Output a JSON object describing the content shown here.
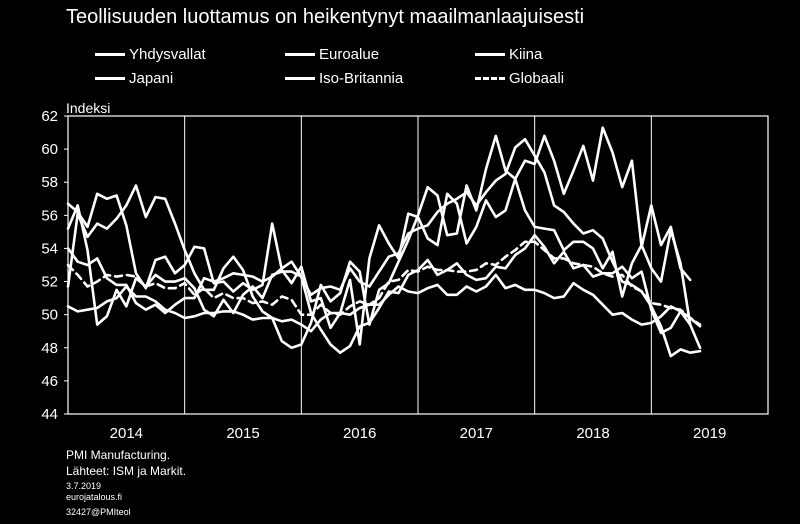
{
  "title": "Teollisuuden luottamus on heikentynyt maailmanlaajuisesti",
  "footer": {
    "line1": "PMI Manufacturing.",
    "line2": "Lähteet: ISM ja Markit.",
    "date": "3.7.2019",
    "site": "eurojatalous.fi",
    "id": "32427@PMIteol"
  },
  "colors": {
    "background": "#000000",
    "foreground": "#ffffff"
  },
  "chart_data": {
    "type": "line",
    "ylabel": "Indeksi",
    "ylim": [
      44,
      62
    ],
    "yticks": [
      44,
      46,
      48,
      50,
      52,
      54,
      56,
      58,
      60,
      62
    ],
    "xlim": [
      2014.0,
      2020.0
    ],
    "xticks": [
      "2014",
      "2015",
      "2016",
      "2017",
      "2018",
      "2019"
    ],
    "grid": "vertical year lines",
    "legend_position": "top",
    "series": [
      {
        "name": "Yhdysvallat",
        "style": "solid",
        "x": [
          2014.0,
          2014.083,
          2014.167,
          2014.25,
          2014.333,
          2014.417,
          2014.5,
          2014.583,
          2014.667,
          2014.75,
          2014.833,
          2014.917,
          2015.0,
          2015.083,
          2015.167,
          2015.25,
          2015.333,
          2015.417,
          2015.5,
          2015.583,
          2015.667,
          2015.75,
          2015.833,
          2015.917,
          2016.0,
          2016.083,
          2016.167,
          2016.25,
          2016.333,
          2016.417,
          2016.5,
          2016.583,
          2016.667,
          2016.75,
          2016.833,
          2016.917,
          2017.0,
          2017.083,
          2017.167,
          2017.25,
          2017.333,
          2017.417,
          2017.5,
          2017.583,
          2017.667,
          2017.75,
          2017.833,
          2017.917,
          2018.0,
          2018.083,
          2018.167,
          2018.25,
          2018.333,
          2018.417,
          2018.5,
          2018.583,
          2018.667,
          2018.75,
          2018.833,
          2018.917,
          2019.0,
          2019.083,
          2019.167,
          2019.25,
          2019.333
        ],
        "values": [
          51.7,
          56.1,
          54.7,
          55.5,
          55.2,
          55.8,
          56.6,
          57.8,
          55.9,
          57.1,
          57.0,
          55.5,
          53.9,
          52.5,
          51.5,
          51.5,
          52.8,
          53.5,
          52.7,
          51.1,
          50.2,
          49.8,
          48.4,
          48.0,
          48.2,
          49.5,
          51.8,
          50.8,
          51.3,
          53.2,
          52.6,
          49.4,
          51.5,
          51.9,
          53.2,
          54.5,
          56.0,
          57.7,
          57.2,
          54.8,
          54.9,
          57.8,
          56.3,
          58.8,
          60.8,
          58.7,
          58.2,
          59.3,
          59.1,
          60.8,
          59.3,
          57.3,
          58.7,
          60.2,
          58.1,
          61.3,
          59.8,
          57.7,
          59.3,
          54.1,
          56.6,
          54.2,
          55.3,
          52.8,
          52.1
        ]
      },
      {
        "name": "Euroalue",
        "style": "solid",
        "x": [
          2014.0,
          2014.083,
          2014.167,
          2014.25,
          2014.333,
          2014.417,
          2014.5,
          2014.583,
          2014.667,
          2014.75,
          2014.833,
          2014.917,
          2015.0,
          2015.083,
          2015.167,
          2015.25,
          2015.333,
          2015.417,
          2015.5,
          2015.583,
          2015.667,
          2015.75,
          2015.833,
          2015.917,
          2016.0,
          2016.083,
          2016.167,
          2016.25,
          2016.333,
          2016.417,
          2016.5,
          2016.583,
          2016.667,
          2016.75,
          2016.833,
          2016.917,
          2017.0,
          2017.083,
          2017.167,
          2017.25,
          2017.333,
          2017.417,
          2017.5,
          2017.583,
          2017.667,
          2017.75,
          2017.833,
          2017.917,
          2018.0,
          2018.083,
          2018.167,
          2018.25,
          2018.333,
          2018.417,
          2018.5,
          2018.583,
          2018.667,
          2018.75,
          2018.833,
          2018.917,
          2019.0,
          2019.083,
          2019.167,
          2019.25,
          2019.333,
          2019.417
        ],
        "values": [
          54.0,
          53.2,
          53.0,
          53.4,
          52.2,
          51.8,
          51.8,
          50.7,
          50.3,
          50.6,
          50.1,
          50.6,
          51.0,
          51.0,
          52.2,
          52.0,
          52.2,
          52.5,
          52.4,
          52.3,
          52.0,
          52.3,
          52.8,
          53.2,
          52.3,
          51.2,
          51.6,
          51.7,
          51.5,
          52.8,
          52.0,
          51.7,
          52.6,
          53.5,
          53.7,
          54.9,
          55.2,
          55.4,
          56.2,
          56.7,
          57.0,
          57.4,
          56.6,
          57.4,
          58.1,
          58.5,
          60.1,
          60.6,
          59.6,
          58.6,
          56.6,
          56.2,
          55.5,
          54.9,
          55.1,
          54.6,
          53.2,
          52.0,
          51.8,
          51.4,
          50.5,
          49.3,
          47.5,
          47.9,
          47.7,
          47.8
        ]
      },
      {
        "name": "Kiina",
        "style": "solid",
        "x": [
          2014.0,
          2014.083,
          2014.167,
          2014.25,
          2014.333,
          2014.417,
          2014.5,
          2014.583,
          2014.667,
          2014.75,
          2014.833,
          2014.917,
          2015.0,
          2015.083,
          2015.167,
          2015.25,
          2015.333,
          2015.417,
          2015.5,
          2015.583,
          2015.667,
          2015.75,
          2015.833,
          2015.917,
          2016.0,
          2016.083,
          2016.167,
          2016.25,
          2016.333,
          2016.417,
          2016.5,
          2016.583,
          2016.667,
          2016.75,
          2016.833,
          2016.917,
          2017.0,
          2017.083,
          2017.167,
          2017.25,
          2017.333,
          2017.417,
          2017.5,
          2017.583,
          2017.667,
          2017.75,
          2017.833,
          2017.917,
          2018.0,
          2018.083,
          2018.167,
          2018.25,
          2018.333,
          2018.417,
          2018.5,
          2018.583,
          2018.667,
          2018.75,
          2018.833,
          2018.917,
          2019.0,
          2019.083,
          2019.167,
          2019.25,
          2019.333
        ],
        "values": [
          50.5,
          50.2,
          50.3,
          50.4,
          50.8,
          51.0,
          51.7,
          51.1,
          51.1,
          50.8,
          50.3,
          50.1,
          49.8,
          49.9,
          50.1,
          50.1,
          50.2,
          50.2,
          50.0,
          49.7,
          49.8,
          49.8,
          49.6,
          49.7,
          49.4,
          49.0,
          49.7,
          50.1,
          50.1,
          50.0,
          50.4,
          50.6,
          50.6,
          51.2,
          51.7,
          51.4,
          51.3,
          51.6,
          51.8,
          51.2,
          51.2,
          51.7,
          51.4,
          51.7,
          52.4,
          51.6,
          51.8,
          51.5,
          51.5,
          51.3,
          51.0,
          51.1,
          51.9,
          51.5,
          51.2,
          50.6,
          50.0,
          50.1,
          49.7,
          49.4,
          49.5,
          49.9,
          50.5,
          50.2,
          49.4
        ]
      },
      {
        "name": "Japani",
        "style": "solid",
        "x": [
          2014.0,
          2014.083,
          2014.167,
          2014.25,
          2014.333,
          2014.417,
          2014.5,
          2014.583,
          2014.667,
          2014.75,
          2014.833,
          2014.917,
          2015.0,
          2015.083,
          2015.167,
          2015.25,
          2015.333,
          2015.417,
          2015.5,
          2015.583,
          2015.667,
          2015.75,
          2015.833,
          2015.917,
          2016.0,
          2016.083,
          2016.167,
          2016.25,
          2016.333,
          2016.417,
          2016.5,
          2016.583,
          2016.667,
          2016.75,
          2016.833,
          2016.917,
          2017.0,
          2017.083,
          2017.167,
          2017.25,
          2017.333,
          2017.417,
          2017.5,
          2017.583,
          2017.667,
          2017.75,
          2017.833,
          2017.917,
          2018.0,
          2018.083,
          2018.167,
          2018.25,
          2018.333,
          2018.417,
          2018.5,
          2018.583,
          2018.667,
          2018.75,
          2018.833,
          2018.917,
          2019.0,
          2019.083,
          2019.167,
          2019.25,
          2019.333,
          2019.417
        ],
        "values": [
          55.2,
          56.6,
          53.9,
          49.4,
          49.9,
          51.5,
          50.5,
          52.2,
          51.7,
          52.4,
          52.0,
          52.0,
          52.2,
          51.6,
          50.3,
          49.9,
          50.9,
          50.1,
          51.2,
          51.7,
          51.0,
          52.4,
          52.6,
          52.6,
          52.3,
          50.1,
          49.1,
          48.2,
          47.7,
          48.1,
          49.3,
          49.5,
          50.4,
          51.4,
          51.3,
          52.4,
          52.7,
          53.3,
          52.4,
          52.7,
          53.1,
          52.4,
          52.1,
          52.2,
          52.9,
          52.8,
          53.6,
          54.0,
          54.8,
          54.1,
          53.1,
          53.8,
          52.8,
          53.0,
          52.3,
          52.5,
          52.5,
          52.9,
          52.2,
          52.6,
          50.3,
          48.9,
          49.2,
          50.2,
          49.8,
          49.3
        ]
      },
      {
        "name": "Iso-Britannia",
        "style": "solid",
        "x": [
          2014.0,
          2014.083,
          2014.167,
          2014.25,
          2014.333,
          2014.417,
          2014.5,
          2014.583,
          2014.667,
          2014.75,
          2014.833,
          2014.917,
          2015.0,
          2015.083,
          2015.167,
          2015.25,
          2015.333,
          2015.417,
          2015.5,
          2015.583,
          2015.667,
          2015.75,
          2015.833,
          2015.917,
          2016.0,
          2016.083,
          2016.167,
          2016.25,
          2016.333,
          2016.417,
          2016.5,
          2016.583,
          2016.667,
          2016.75,
          2016.833,
          2016.917,
          2017.0,
          2017.083,
          2017.167,
          2017.25,
          2017.333,
          2017.417,
          2017.5,
          2017.583,
          2017.667,
          2017.75,
          2017.833,
          2017.917,
          2018.0,
          2018.083,
          2018.167,
          2018.25,
          2018.333,
          2018.417,
          2018.5,
          2018.583,
          2018.667,
          2018.75,
          2018.833,
          2018.917,
          2019.0,
          2019.083,
          2019.167,
          2019.25,
          2019.333,
          2019.417
        ],
        "values": [
          56.7,
          56.2,
          55.3,
          57.3,
          57.0,
          57.2,
          55.4,
          52.5,
          51.6,
          53.3,
          53.5,
          52.5,
          53.0,
          54.1,
          54.0,
          51.9,
          52.0,
          51.4,
          51.9,
          51.5,
          51.8,
          55.5,
          52.7,
          51.9,
          52.9,
          50.8,
          51.0,
          49.2,
          50.1,
          52.1,
          48.2,
          53.4,
          55.4,
          54.3,
          53.4,
          56.1,
          55.9,
          54.6,
          54.2,
          57.3,
          56.7,
          54.3,
          55.3,
          56.9,
          55.9,
          56.3,
          58.2,
          56.3,
          55.3,
          55.2,
          55.1,
          53.9,
          54.4,
          54.4,
          54.0,
          52.8,
          53.8,
          51.1,
          53.1,
          54.2,
          52.8,
          52.0,
          55.1,
          53.1,
          49.4,
          48.0
        ]
      },
      {
        "name": "Globaali",
        "style": "dashed",
        "x": [
          2014.0,
          2014.083,
          2014.167,
          2014.25,
          2014.333,
          2014.417,
          2014.5,
          2014.583,
          2014.667,
          2014.75,
          2014.833,
          2014.917,
          2015.0,
          2015.083,
          2015.167,
          2015.25,
          2015.333,
          2015.417,
          2015.5,
          2015.583,
          2015.667,
          2015.75,
          2015.833,
          2015.917,
          2016.0,
          2016.083,
          2016.167,
          2016.25,
          2016.333,
          2016.417,
          2016.5,
          2016.583,
          2016.667,
          2016.75,
          2016.833,
          2016.917,
          2017.0,
          2017.083,
          2017.167,
          2017.25,
          2017.333,
          2017.417,
          2017.5,
          2017.583,
          2017.667,
          2017.75,
          2017.833,
          2017.917,
          2018.0,
          2018.083,
          2018.167,
          2018.25,
          2018.333,
          2018.417,
          2018.5,
          2018.583,
          2018.667,
          2018.75,
          2018.833,
          2018.917,
          2019.0,
          2019.083,
          2019.167,
          2019.25,
          2019.333,
          2019.417
        ],
        "values": [
          53.0,
          52.4,
          51.7,
          52.0,
          52.4,
          52.3,
          52.4,
          52.3,
          51.7,
          51.9,
          51.6,
          51.6,
          51.9,
          51.2,
          51.6,
          51.0,
          51.3,
          51.0,
          51.0,
          50.7,
          50.8,
          50.6,
          51.1,
          50.9,
          50.0,
          50.0,
          50.6,
          50.1,
          50.0,
          50.5,
          50.8,
          50.6,
          51.0,
          52.0,
          52.1,
          52.7,
          52.6,
          52.9,
          52.7,
          52.7,
          52.6,
          52.6,
          52.7,
          53.1,
          53.0,
          53.5,
          53.9,
          54.4,
          54.4,
          53.9,
          53.4,
          53.4,
          53.1,
          53.0,
          52.9,
          52.5,
          52.3,
          52.4,
          51.7,
          51.4,
          50.7,
          50.6,
          50.4,
          50.3,
          49.8,
          49.4
        ]
      }
    ]
  }
}
